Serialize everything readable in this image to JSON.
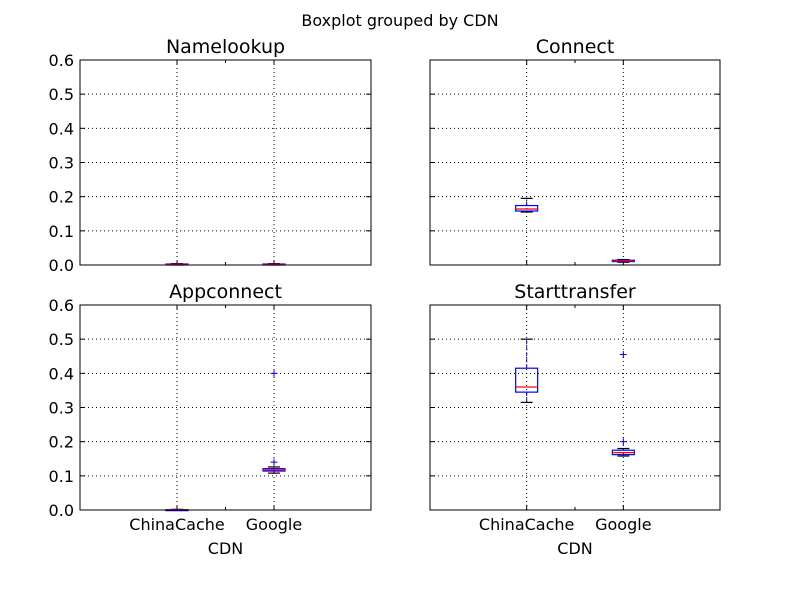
{
  "suptitle": "Boxplot grouped by CDN",
  "chart_data": {
    "type": "boxplot",
    "categories": [
      "ChinaCache",
      "Google"
    ],
    "xlabel": "CDN",
    "ylim": [
      0,
      0.6
    ],
    "yticks": [
      "0.0",
      "0.1",
      "0.2",
      "0.3",
      "0.4",
      "0.5",
      "0.6"
    ],
    "grid": true,
    "colors": {
      "box": "#0000ff",
      "median": "#ff0000",
      "cap": "#000000",
      "flier": "#0000ff"
    },
    "panels": [
      {
        "title": "Namelookup",
        "boxes": [
          {
            "category": "ChinaCache",
            "whislo": 0.0,
            "q1": 0.001,
            "med": 0.002,
            "q3": 0.003,
            "whishi": 0.004,
            "fliers": []
          },
          {
            "category": "Google",
            "whislo": 0.0,
            "q1": 0.001,
            "med": 0.002,
            "q3": 0.003,
            "whishi": 0.004,
            "fliers": []
          }
        ]
      },
      {
        "title": "Connect",
        "boxes": [
          {
            "category": "ChinaCache",
            "whislo": 0.155,
            "q1": 0.158,
            "med": 0.164,
            "q3": 0.174,
            "whishi": 0.195,
            "fliers": []
          },
          {
            "category": "Google",
            "whislo": 0.008,
            "q1": 0.01,
            "med": 0.012,
            "q3": 0.014,
            "whishi": 0.016,
            "fliers": []
          }
        ]
      },
      {
        "title": "Appconnect",
        "boxes": [
          {
            "category": "ChinaCache",
            "whislo": 0.0,
            "q1": 0.0,
            "med": 0.001,
            "q3": 0.001,
            "whishi": 0.002,
            "fliers": []
          },
          {
            "category": "Google",
            "whislo": 0.108,
            "q1": 0.114,
            "med": 0.117,
            "q3": 0.121,
            "whishi": 0.126,
            "fliers": [
              0.14,
              0.4
            ]
          }
        ]
      },
      {
        "title": "Starttransfer",
        "boxes": [
          {
            "category": "ChinaCache",
            "whislo": 0.315,
            "q1": 0.345,
            "med": 0.36,
            "q3": 0.415,
            "whishi": 0.5,
            "fliers": []
          },
          {
            "category": "Google",
            "whislo": 0.158,
            "q1": 0.162,
            "med": 0.168,
            "q3": 0.175,
            "whishi": 0.18,
            "fliers": [
              0.2,
              0.455
            ]
          }
        ]
      }
    ]
  }
}
